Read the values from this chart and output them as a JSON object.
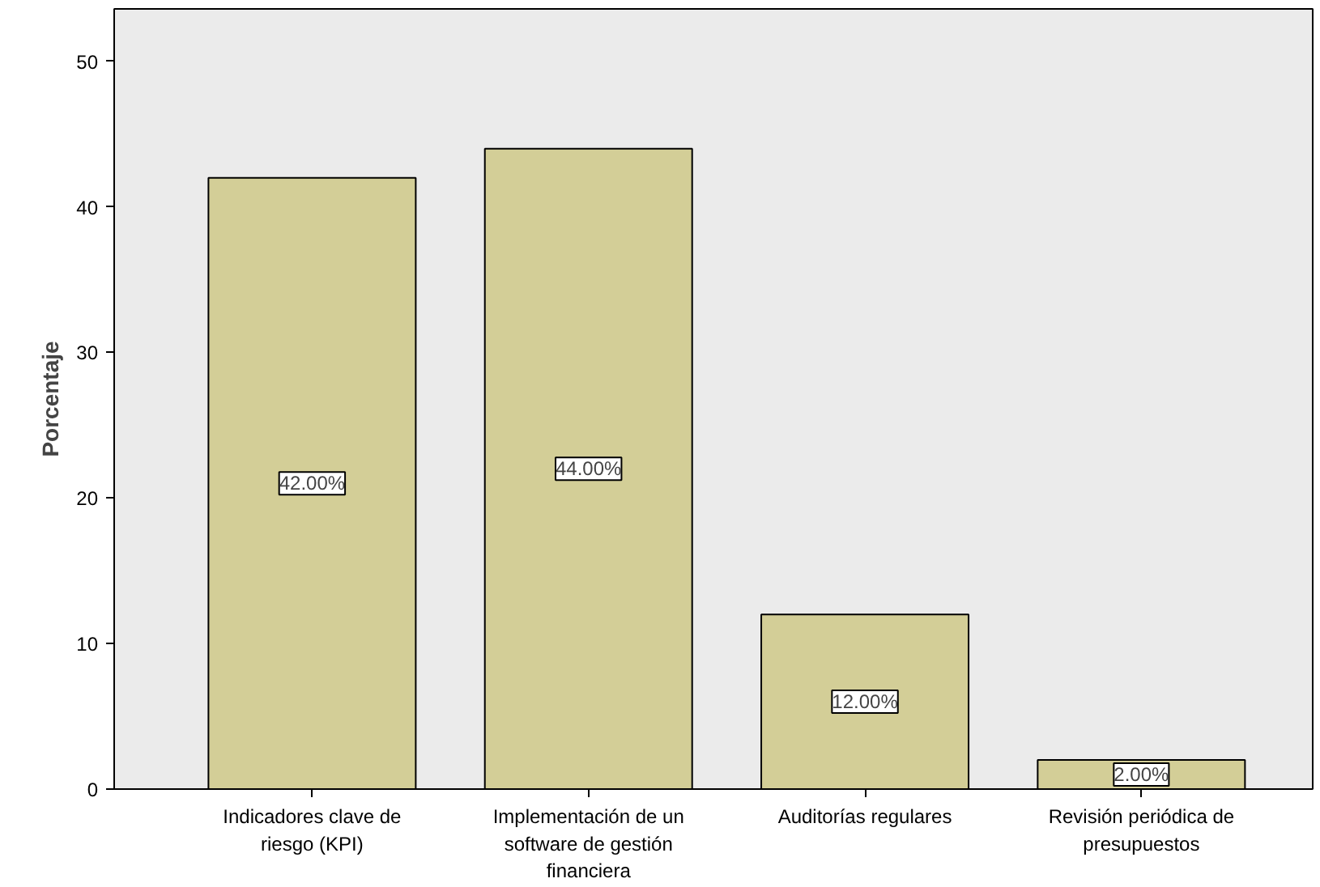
{
  "chart_data": {
    "type": "bar",
    "ylabel": "Porcentaje",
    "categories": [
      "Indicadores clave de riesgo (KPI)",
      "Implementación de un software de gestión financiera",
      "Auditorías regulares",
      "Revisión periódica de presupuestos"
    ],
    "values": [
      42,
      44,
      12,
      2
    ],
    "value_labels": [
      "42.00%",
      "44.00%",
      "12.00%",
      "2.00%"
    ],
    "color": "#d3ce97",
    "ylim": [
      0,
      53.6
    ],
    "yticks": [
      0,
      10,
      20,
      30,
      40,
      50
    ],
    "grid": false
  }
}
